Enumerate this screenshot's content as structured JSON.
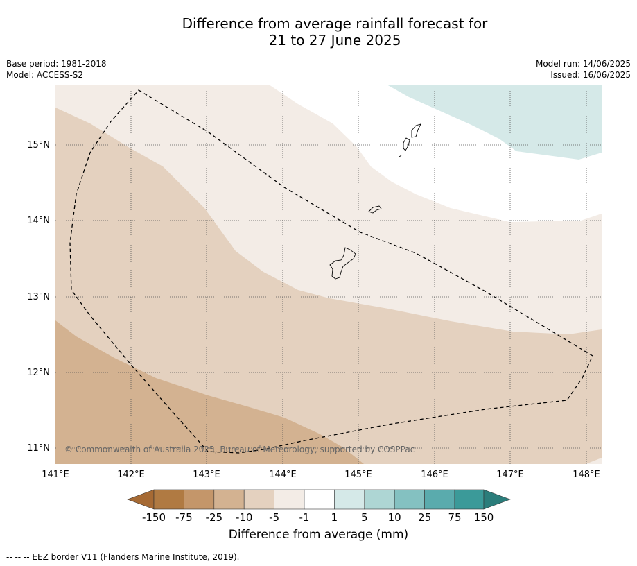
{
  "title_line1": "Difference from average rainfall forecast for",
  "title_line2": "21 to 27 June 2025",
  "meta_left": {
    "base_period": "Base period: 1981-2018",
    "model": "Model: ACCESS-S2"
  },
  "meta_right": {
    "model_run": "Model run: 14/06/2025",
    "issued": "Issued: 16/06/2025"
  },
  "lon_labels": [
    "141°E",
    "142°E",
    "143°E",
    "144°E",
    "145°E",
    "146°E",
    "147°E",
    "148°E"
  ],
  "lat_labels": [
    "15°N",
    "14°N",
    "13°N",
    "12°N",
    "11°N"
  ],
  "copyright": "© Commonwealth of Australia 2025, Bureau of Meteorology, supported by COSPPac",
  "colorbar": {
    "title": "Difference from average (mm)",
    "tick_labels": [
      "-150",
      "-75",
      "-25",
      "-10",
      "-5",
      "-1",
      "1",
      "5",
      "10",
      "25",
      "75",
      "150"
    ],
    "colors": [
      "#a66a34",
      "#b07a42",
      "#c4966a",
      "#d3b291",
      "#e4d1bf",
      "#f3ece6",
      "#ffffff",
      "#d5e9e8",
      "#aed6d4",
      "#84c1c1",
      "#5aabad",
      "#3b9a99",
      "#2b7d7b"
    ]
  },
  "footnote": "--  --  -- EEZ border V11 (Flanders Marine Institute, 2019).",
  "map_regions": [
    {
      "name": "region-less-than-minus-25",
      "color": "#d3b291"
    },
    {
      "name": "region-minus-25-to-minus-10",
      "color": "#e4d1bf"
    },
    {
      "name": "region-minus-10-to-minus-5",
      "color": "#f3ece6"
    },
    {
      "name": "region-minus-5-to-5",
      "color": "#ffffff"
    },
    {
      "name": "region-5-to-10",
      "color": "#d5e9e8"
    }
  ]
}
